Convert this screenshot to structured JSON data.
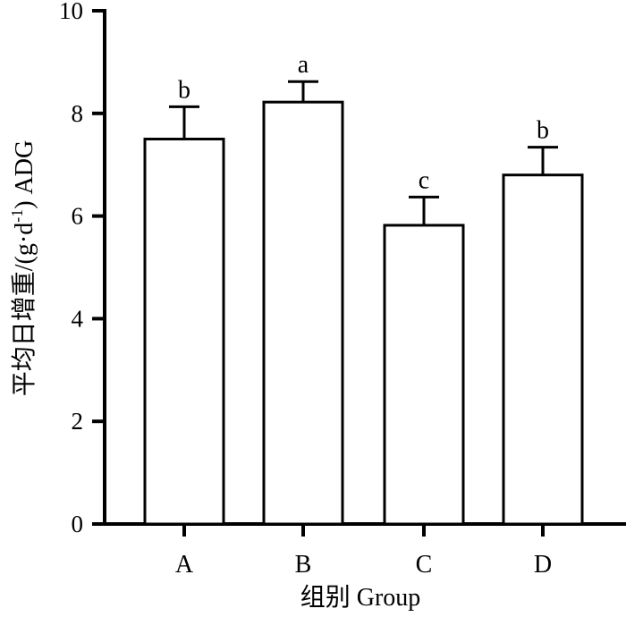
{
  "chart_data": {
    "type": "bar",
    "categories": [
      "A",
      "B",
      "C",
      "D"
    ],
    "values": [
      7.5,
      8.22,
      5.82,
      6.8
    ],
    "errors": [
      0.63,
      0.4,
      0.55,
      0.54
    ],
    "significance": [
      "b",
      "a",
      "c",
      "b"
    ],
    "xlabel": "组别 Group",
    "ylabel_main": "平均日增重/(g·d",
    "ylabel_sup": "-1",
    "ylabel_tail": ")  ADG",
    "ylim": [
      0,
      10
    ],
    "yticks": [
      "0",
      "2",
      "4",
      "6",
      "8",
      "10"
    ],
    "grid": false,
    "colors": {
      "bar_fill": "#ffffff",
      "stroke": "#000000"
    }
  }
}
